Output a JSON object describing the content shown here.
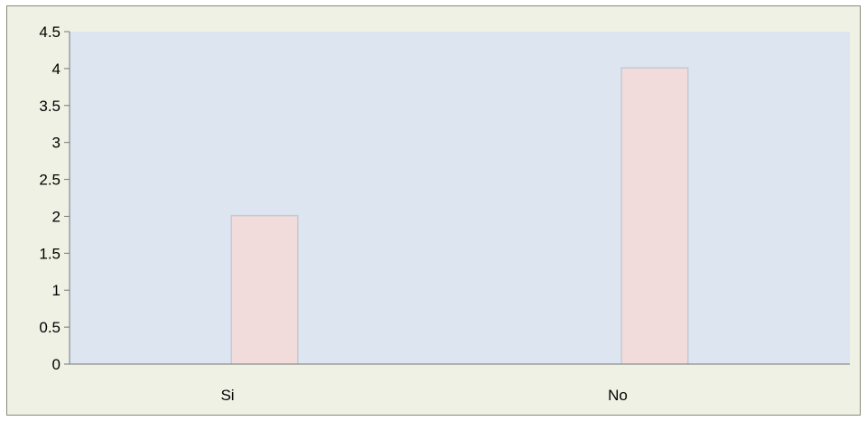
{
  "chart_data": {
    "type": "bar",
    "title": "",
    "xlabel": "",
    "ylabel": "",
    "categories": [
      "Si",
      "No"
    ],
    "values": [
      2,
      4
    ],
    "ylim": [
      0,
      4.5
    ],
    "y_ticks": [
      "0",
      "0.5",
      "1",
      "1.5",
      "2",
      "2.5",
      "3",
      "3.5",
      "4",
      "4.5"
    ],
    "grid": false,
    "legend": "none",
    "colors": {
      "outer_background": "#eef1e3",
      "plot_background": "#dce5f0",
      "bar_fill": "#f2dcdb",
      "bar_shadow": "#c5c9d4",
      "axis": "#777777"
    }
  }
}
